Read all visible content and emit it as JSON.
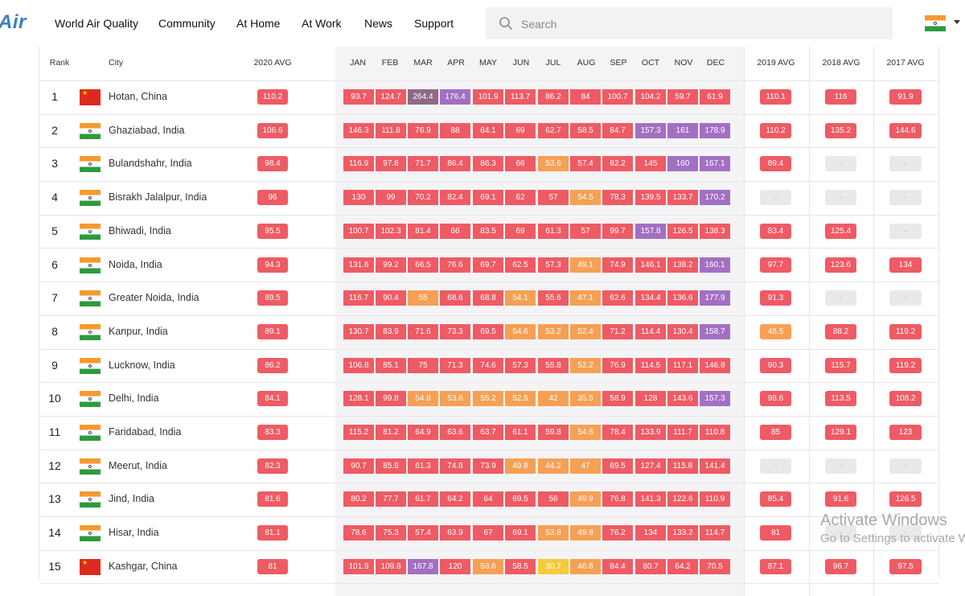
{
  "header": {
    "logo": "Air",
    "nav": [
      "World Air Quality",
      "Community",
      "At Home",
      "At Work",
      "News",
      "Support"
    ],
    "search_placeholder": "Search",
    "country_flag": "india"
  },
  "table": {
    "columns": {
      "rank": "Rank",
      "city": "City",
      "avg2020": "2020 AVG",
      "months": [
        "JAN",
        "FEB",
        "MAR",
        "APR",
        "MAY",
        "JUN",
        "JUL",
        "AUG",
        "SEP",
        "OCT",
        "NOV",
        "DEC"
      ],
      "avg2019": "2019 AVG",
      "avg2018": "2018 AVG",
      "avg2017": "2017 AVG"
    },
    "rows": [
      {
        "rank": "1",
        "city": "Hotan, China",
        "flag": "china",
        "avg2020": "110.2",
        "months": [
          "93.7",
          "124.7",
          "264.4",
          "176.4",
          "101.9",
          "113.7",
          "86.2",
          "84",
          "100.7",
          "104.2",
          "59.7",
          "61.9"
        ],
        "avg2019": "110.1",
        "avg2018": "116",
        "avg2017": "91.9"
      },
      {
        "rank": "2",
        "city": "Ghaziabad, India",
        "flag": "india",
        "avg2020": "106.6",
        "months": [
          "146.3",
          "111.8",
          "76.9",
          "88",
          "84.1",
          "69",
          "62.7",
          "58.5",
          "84.7",
          "157.3",
          "161",
          "178.9"
        ],
        "avg2019": "110.2",
        "avg2018": "135.2",
        "avg2017": "144.6"
      },
      {
        "rank": "3",
        "city": "Bulandshahr, India",
        "flag": "india",
        "avg2020": "98.4",
        "months": [
          "116.9",
          "97.8",
          "71.7",
          "86.4",
          "86.3",
          "66",
          "53.6",
          "57.4",
          "82.2",
          "145",
          "160",
          "167.1"
        ],
        "avg2019": "89.4",
        "avg2018": "-",
        "avg2017": "-"
      },
      {
        "rank": "4",
        "city": "Bisrakh Jalalpur, India",
        "flag": "india",
        "avg2020": "96",
        "months": [
          "130",
          "99",
          "70.2",
          "82.4",
          "69.1",
          "62",
          "57",
          "54.5",
          "78.3",
          "139.5",
          "133.7",
          "170.2"
        ],
        "avg2019": "-",
        "avg2018": "-",
        "avg2017": "-"
      },
      {
        "rank": "5",
        "city": "Bhiwadi, India",
        "flag": "india",
        "avg2020": "95.5",
        "months": [
          "100.7",
          "102.3",
          "81.4",
          "66",
          "83.5",
          "69",
          "61.3",
          "57",
          "99.7",
          "157.8",
          "126.5",
          "138.3"
        ],
        "avg2019": "83.4",
        "avg2018": "125.4",
        "avg2017": "-"
      },
      {
        "rank": "6",
        "city": "Noida, India",
        "flag": "india",
        "avg2020": "94.3",
        "months": [
          "131.6",
          "99.2",
          "66.5",
          "76.6",
          "69.7",
          "62.5",
          "57.3",
          "49.1",
          "74.9",
          "146.1",
          "138.2",
          "160.1"
        ],
        "avg2019": "97.7",
        "avg2018": "123.6",
        "avg2017": "134"
      },
      {
        "rank": "7",
        "city": "Greater Noida, India",
        "flag": "india",
        "avg2020": "89.5",
        "months": [
          "116.7",
          "90.4",
          "55",
          "68.6",
          "68.8",
          "54.1",
          "55.6",
          "47.1",
          "62.6",
          "134.4",
          "136.6",
          "177.9"
        ],
        "avg2019": "91.3",
        "avg2018": "-",
        "avg2017": "-"
      },
      {
        "rank": "8",
        "city": "Kanpur, India",
        "flag": "india",
        "avg2020": "89.1",
        "months": [
          "130.7",
          "83.9",
          "71.6",
          "73.3",
          "69.5",
          "54.6",
          "53.2",
          "52.4",
          "71.2",
          "114.4",
          "130.4",
          "158.7"
        ],
        "avg2019": "48.5",
        "avg2018": "88.2",
        "avg2017": "119.2"
      },
      {
        "rank": "9",
        "city": "Lucknow, India",
        "flag": "india",
        "avg2020": "86.2",
        "months": [
          "106.8",
          "85.1",
          "75",
          "71.3",
          "74.6",
          "57.3",
          "55.8",
          "52.2",
          "76.9",
          "114.5",
          "117.1",
          "146.8"
        ],
        "avg2019": "90.3",
        "avg2018": "115.7",
        "avg2017": "119.2"
      },
      {
        "rank": "10",
        "city": "Delhi, India",
        "flag": "india",
        "avg2020": "84.1",
        "months": [
          "128.1",
          "99.8",
          "54.8",
          "53.6",
          "55.2",
          "52.5",
          "42",
          "35.5",
          "58.9",
          "128",
          "143.6",
          "157.3"
        ],
        "avg2019": "98.6",
        "avg2018": "113.5",
        "avg2017": "108.2"
      },
      {
        "rank": "11",
        "city": "Faridabad, India",
        "flag": "india",
        "avg2020": "83.3",
        "months": [
          "115.2",
          "81.2",
          "64.9",
          "63.6",
          "63.7",
          "61.1",
          "59.8",
          "54.6",
          "78.4",
          "133.9",
          "111.7",
          "110.8"
        ],
        "avg2019": "85",
        "avg2018": "129.1",
        "avg2017": "123"
      },
      {
        "rank": "12",
        "city": "Meerut, India",
        "flag": "india",
        "avg2020": "82.3",
        "months": [
          "90.7",
          "85.8",
          "61.3",
          "74.8",
          "73.9",
          "49.8",
          "44.2",
          "47",
          "69.5",
          "127.4",
          "115.8",
          "141.4"
        ],
        "avg2019": "-",
        "avg2018": "-",
        "avg2017": "-"
      },
      {
        "rank": "13",
        "city": "Jind, India",
        "flag": "india",
        "avg2020": "81.6",
        "months": [
          "80.2",
          "77.7",
          "61.7",
          "64.2",
          "64",
          "69.5",
          "56",
          "49.9",
          "76.8",
          "141.3",
          "122.6",
          "110.9"
        ],
        "avg2019": "85.4",
        "avg2018": "91.6",
        "avg2017": "126.5"
      },
      {
        "rank": "14",
        "city": "Hisar, India",
        "flag": "india",
        "avg2020": "81.1",
        "months": [
          "78.6",
          "75.3",
          "57.4",
          "63.9",
          "67",
          "69.1",
          "53.8",
          "49.8",
          "76.2",
          "134",
          "133.2",
          "114.7"
        ],
        "avg2019": "81",
        "avg2018": "-",
        "avg2017": "-"
      },
      {
        "rank": "15",
        "city": "Kashgar, China",
        "flag": "china",
        "avg2020": "81",
        "months": [
          "101.9",
          "109.8",
          "167.8",
          "120",
          "53.6",
          "58.5",
          "30.7",
          "46.6",
          "84.4",
          "80.7",
          "64.2",
          "70.5"
        ],
        "avg2019": "87.1",
        "avg2018": "96.7",
        "avg2017": "97.5"
      }
    ]
  },
  "watermark": {
    "line1": "Activate Windows",
    "line2": "Go to Settings to activate W"
  }
}
